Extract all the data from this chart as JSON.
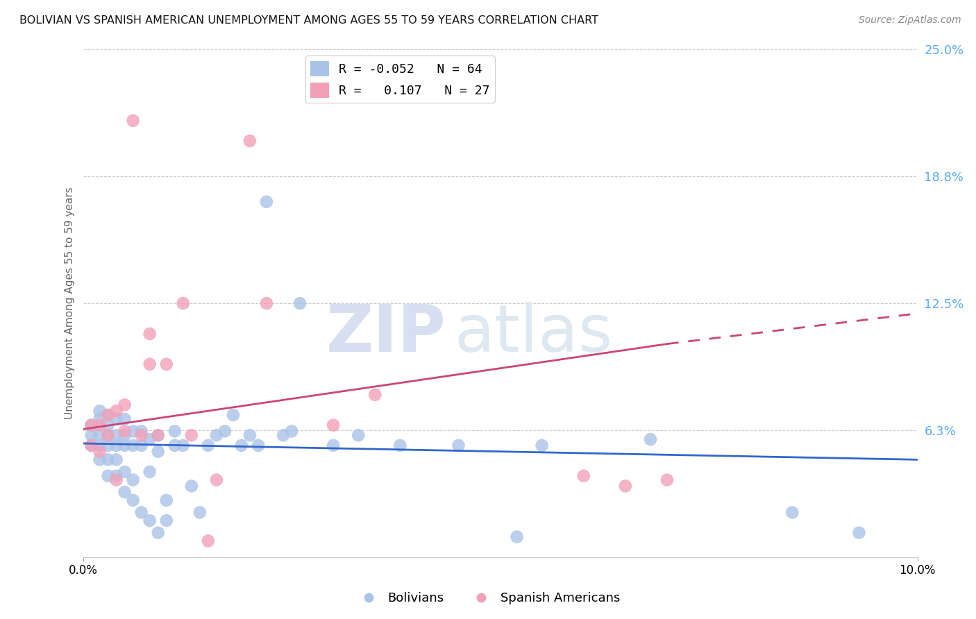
{
  "title": "BOLIVIAN VS SPANISH AMERICAN UNEMPLOYMENT AMONG AGES 55 TO 59 YEARS CORRELATION CHART",
  "source": "Source: ZipAtlas.com",
  "ylabel": "Unemployment Among Ages 55 to 59 years",
  "xlim": [
    0.0,
    0.1
  ],
  "ylim": [
    0.0,
    0.25
  ],
  "xtick_vals": [
    0.0,
    0.1
  ],
  "xtick_labels": [
    "0.0%",
    "10.0%"
  ],
  "ytick_vals": [
    0.0625,
    0.125,
    0.1875,
    0.25
  ],
  "ytick_labels": [
    "6.3%",
    "12.5%",
    "18.8%",
    "25.0%"
  ],
  "blue_scatter_color": "#aac4e8",
  "pink_scatter_color": "#f2a0b8",
  "blue_line_color": "#3366cc",
  "pink_line_color": "#cc4477",
  "right_axis_color": "#55aaff",
  "legend_blue_label": "Bolivians",
  "legend_pink_label": "Spanish Americans",
  "R_blue": -0.052,
  "N_blue": 64,
  "R_pink": 0.107,
  "N_pink": 27,
  "blue_line_x0": 0.0,
  "blue_line_y0": 0.056,
  "blue_line_x1": 0.1,
  "blue_line_y1": 0.048,
  "pink_line_x0": 0.0,
  "pink_line_y0": 0.063,
  "pink_line_x1_solid": 0.07,
  "pink_line_y1_solid": 0.105,
  "pink_line_x1_dash": 0.1,
  "pink_line_y1_dash": 0.12,
  "bolivians_x": [
    0.001,
    0.001,
    0.001,
    0.002,
    0.002,
    0.002,
    0.002,
    0.002,
    0.003,
    0.003,
    0.003,
    0.003,
    0.003,
    0.003,
    0.004,
    0.004,
    0.004,
    0.004,
    0.004,
    0.005,
    0.005,
    0.005,
    0.005,
    0.005,
    0.006,
    0.006,
    0.006,
    0.006,
    0.007,
    0.007,
    0.007,
    0.008,
    0.008,
    0.008,
    0.009,
    0.009,
    0.009,
    0.01,
    0.01,
    0.011,
    0.011,
    0.012,
    0.013,
    0.014,
    0.015,
    0.016,
    0.017,
    0.018,
    0.019,
    0.02,
    0.021,
    0.022,
    0.024,
    0.025,
    0.026,
    0.03,
    0.033,
    0.038,
    0.045,
    0.052,
    0.055,
    0.068,
    0.085,
    0.093
  ],
  "bolivians_y": [
    0.055,
    0.06,
    0.065,
    0.048,
    0.055,
    0.06,
    0.068,
    0.072,
    0.04,
    0.048,
    0.055,
    0.06,
    0.065,
    0.07,
    0.04,
    0.048,
    0.055,
    0.06,
    0.068,
    0.032,
    0.042,
    0.055,
    0.06,
    0.068,
    0.028,
    0.038,
    0.055,
    0.062,
    0.022,
    0.055,
    0.062,
    0.018,
    0.042,
    0.058,
    0.012,
    0.052,
    0.06,
    0.018,
    0.028,
    0.055,
    0.062,
    0.055,
    0.035,
    0.022,
    0.055,
    0.06,
    0.062,
    0.07,
    0.055,
    0.06,
    0.055,
    0.175,
    0.06,
    0.062,
    0.125,
    0.055,
    0.06,
    0.055,
    0.055,
    0.01,
    0.055,
    0.058,
    0.022,
    0.012
  ],
  "spanish_x": [
    0.001,
    0.001,
    0.002,
    0.002,
    0.003,
    0.003,
    0.004,
    0.004,
    0.005,
    0.005,
    0.006,
    0.007,
    0.008,
    0.008,
    0.009,
    0.01,
    0.012,
    0.013,
    0.015,
    0.016,
    0.02,
    0.022,
    0.03,
    0.035,
    0.06,
    0.065,
    0.07
  ],
  "spanish_y": [
    0.055,
    0.065,
    0.052,
    0.065,
    0.06,
    0.07,
    0.038,
    0.072,
    0.062,
    0.075,
    0.215,
    0.06,
    0.095,
    0.11,
    0.06,
    0.095,
    0.125,
    0.06,
    0.008,
    0.038,
    0.205,
    0.125,
    0.065,
    0.08,
    0.04,
    0.035,
    0.038
  ],
  "background_color": "#ffffff",
  "grid_color": "#cccccc",
  "watermark_zip_color": "#d8dff0",
  "watermark_atlas_color": "#dde8f0"
}
